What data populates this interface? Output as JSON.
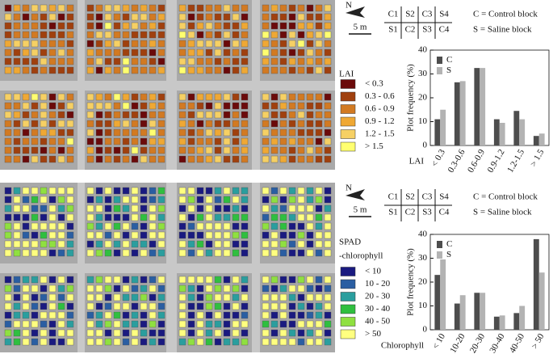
{
  "chart_data": [
    {
      "type": "bar",
      "x_label": "LAI",
      "y_label": "Plot frequency (%)",
      "categories": [
        "< 0.3",
        "0.3-0.6",
        "0.6-0.9",
        "0.9-1.2",
        "1.2-1.5",
        "> 1.5"
      ],
      "series": [
        {
          "name": "C",
          "color": "#4d4d4d",
          "values": [
            11,
            26.5,
            32.5,
            11,
            14.5,
            4
          ]
        },
        {
          "name": "S",
          "color": "#b3b3b3",
          "values": [
            15,
            27,
            32.5,
            9.5,
            11,
            5
          ]
        }
      ],
      "ylim": [
        0,
        40
      ],
      "yticks": [
        0,
        10,
        20,
        30,
        40
      ],
      "legend": "upper left"
    },
    {
      "type": "bar",
      "x_label": "Chlorophyll",
      "y_label": "Plot frequency (%)",
      "categories": [
        "< 10",
        "10-20",
        "20-30",
        "30-40",
        "40-50",
        "> 50"
      ],
      "series": [
        {
          "name": "C",
          "color": "#4d4d4d",
          "values": [
            23,
            11,
            15.5,
            5.5,
            7,
            38
          ]
        },
        {
          "name": "S",
          "color": "#b3b3b3",
          "values": [
            29.5,
            14.5,
            15.5,
            6,
            10,
            24
          ]
        }
      ],
      "ylim": [
        0,
        40
      ],
      "yticks": [
        0,
        10,
        20,
        30,
        40
      ],
      "legend": "upper left"
    }
  ],
  "maps": [
    {
      "legend_title": [
        "LAI"
      ],
      "legend": [
        {
          "label": "< 0.3",
          "color": "#6b0a0a"
        },
        {
          "label": "0.3 - 0.6",
          "color": "#a0400e"
        },
        {
          "label": "0.6 - 0.9",
          "color": "#d27a22"
        },
        {
          "label": "0.9 - 1.2",
          "color": "#efa834"
        },
        {
          "label": "1.2 - 1.5",
          "color": "#f6d064"
        },
        {
          "label": "> 1.5",
          "color": "#ffff70"
        }
      ],
      "north": "N",
      "scale": "5 m",
      "layout": {
        "rows": [
          [
            "C1",
            "S2",
            "C3",
            "S4"
          ],
          [
            "S1",
            "C2",
            "S3",
            "C4"
          ]
        ],
        "notes": [
          "C = Control block",
          "S = Saline block"
        ]
      }
    },
    {
      "legend_title": [
        "SPAD",
        "-chlorophyll"
      ],
      "legend": [
        {
          "label": "< 10",
          "color": "#1a1a80"
        },
        {
          "label": "10 - 20",
          "color": "#2a5ea2"
        },
        {
          "label": "20 - 30",
          "color": "#2a9e9e"
        },
        {
          "label": "30 - 40",
          "color": "#2fbf3f"
        },
        {
          "label": "40 - 50",
          "color": "#8fe040"
        },
        {
          "label": "> 50",
          "color": "#ffff80"
        }
      ],
      "north": "N",
      "scale": "5 m",
      "layout": {
        "rows": [
          [
            "C1",
            "S2",
            "C3",
            "S4"
          ],
          [
            "S1",
            "C2",
            "S3",
            "C4"
          ]
        ],
        "notes": [
          "C = Control block",
          "S = Saline block"
        ]
      }
    }
  ]
}
